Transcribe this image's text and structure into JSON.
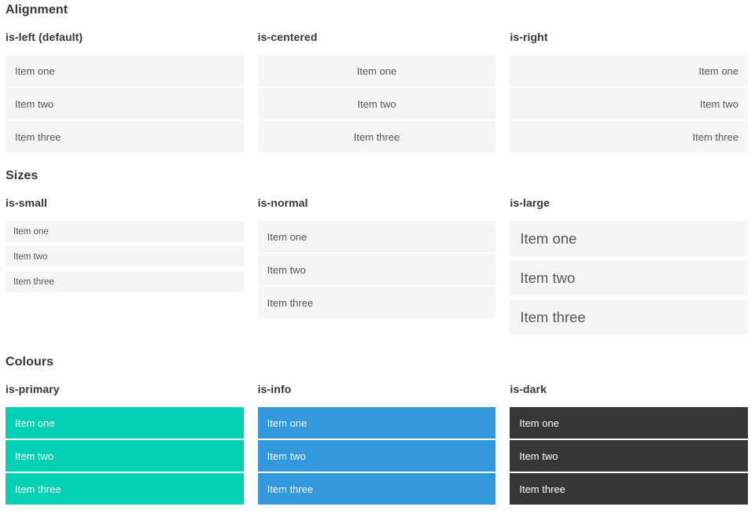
{
  "sections": [
    {
      "title": "Alignment",
      "columns": [
        {
          "subtitle": "is-left (default)",
          "variant": "is-left",
          "items": [
            "Item one",
            "Item two",
            "Item three"
          ]
        },
        {
          "subtitle": "is-centered",
          "variant": "is-centered",
          "items": [
            "Item one",
            "Item two",
            "Item three"
          ]
        },
        {
          "subtitle": "is-right",
          "variant": "is-right",
          "items": [
            "Item one",
            "Item two",
            "Item three"
          ]
        }
      ]
    },
    {
      "title": "Sizes",
      "columns": [
        {
          "subtitle": "is-small",
          "variant": "is-small",
          "items": [
            "Item one",
            "Item two",
            "Item three"
          ]
        },
        {
          "subtitle": "is-normal",
          "variant": "is-normal",
          "items": [
            "Item one",
            "Item two",
            "Item three"
          ]
        },
        {
          "subtitle": "is-large",
          "variant": "is-large",
          "items": [
            "Item one",
            "Item two",
            "Item three"
          ]
        }
      ]
    },
    {
      "title": "Colours",
      "columns": [
        {
          "subtitle": "is-primary",
          "variant": "is-primary",
          "items": [
            "Item one",
            "Item two",
            "Item three"
          ]
        },
        {
          "subtitle": "is-info",
          "variant": "is-info",
          "items": [
            "Item one",
            "Item two",
            "Item three"
          ]
        },
        {
          "subtitle": "is-dark",
          "variant": "is-dark",
          "items": [
            "Item one",
            "Item two",
            "Item three"
          ]
        }
      ]
    }
  ],
  "colors": {
    "primary": "#00d1b2",
    "info": "#3298dc",
    "dark": "#363636",
    "item_background": "#f5f5f5",
    "item_text": "#555555",
    "colour_item_text": "#ffffff",
    "heading_text": "#363636"
  }
}
